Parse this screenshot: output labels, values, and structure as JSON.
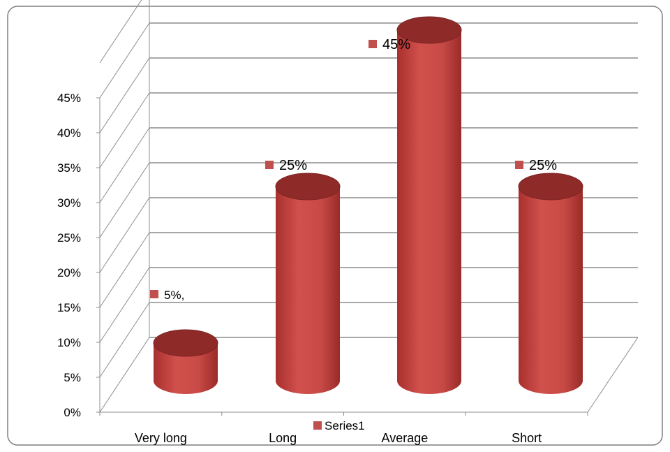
{
  "chart_data": {
    "type": "bar",
    "style": "3d-cylinder",
    "categories": [
      "Very long",
      "Long",
      "Average",
      "Short"
    ],
    "series": [
      {
        "name": "Series1",
        "values": [
          5,
          25,
          45,
          25
        ],
        "color": "#c0504d"
      }
    ],
    "data_labels": [
      "5%,",
      "25%",
      "45%",
      "25%"
    ],
    "yticks": [
      "0%",
      "5%",
      "10%",
      "15%",
      "20%",
      "25%",
      "30%",
      "35%",
      "40%",
      "45%"
    ],
    "ylim": [
      0,
      45
    ],
    "grid": true,
    "legend_position": "bottom",
    "title": "",
    "xlabel": "",
    "ylabel": ""
  }
}
